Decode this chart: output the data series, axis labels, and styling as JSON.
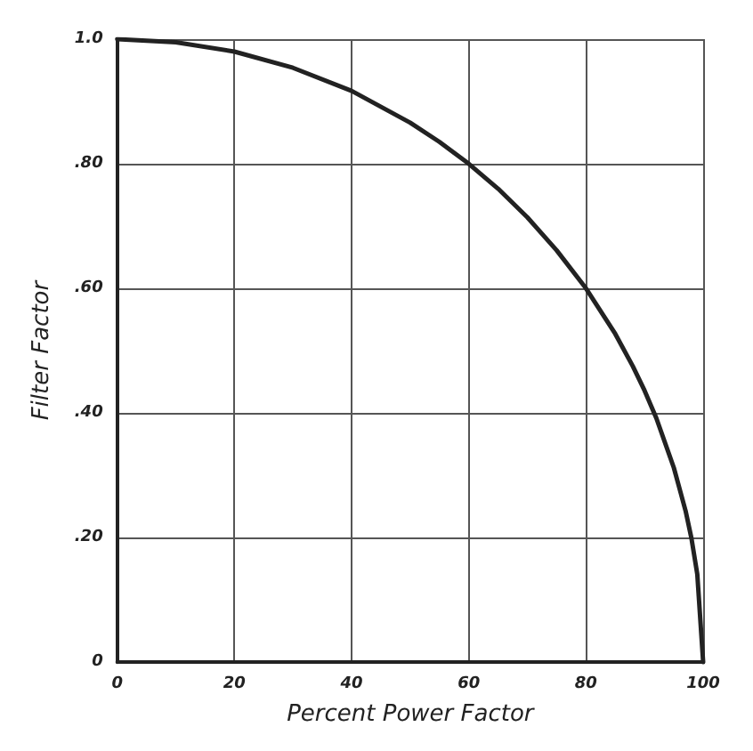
{
  "chart_data": {
    "type": "line",
    "xlabel": "Percent Power Factor",
    "ylabel": "Filter Factor",
    "x": [
      0,
      10,
      20,
      30,
      40,
      50,
      55,
      60,
      65,
      70,
      75,
      80,
      85,
      88,
      90,
      92,
      95,
      97,
      98,
      99,
      100
    ],
    "series": [
      {
        "color": "#222222",
        "values": [
          1.0,
          0.995,
          0.98,
          0.954,
          0.917,
          0.866,
          0.835,
          0.8,
          0.76,
          0.714,
          0.661,
          0.6,
          0.527,
          0.475,
          0.436,
          0.392,
          0.312,
          0.243,
          0.199,
          0.141,
          0
        ]
      }
    ],
    "xlim": [
      0,
      100
    ],
    "ylim": [
      0,
      1
    ],
    "xticks": [
      0,
      20,
      40,
      60,
      80,
      100
    ],
    "yticks": [
      0,
      {
        "value": 0.2,
        "label": ".20"
      },
      {
        "value": 0.4,
        "label": ".40"
      },
      {
        "value": 0.6,
        "label": ".60"
      },
      {
        "value": 0.8,
        "label": ".80"
      },
      {
        "value": 1,
        "label": "1.0"
      }
    ],
    "grid": true,
    "marker": "none",
    "line_style": "solid"
  }
}
